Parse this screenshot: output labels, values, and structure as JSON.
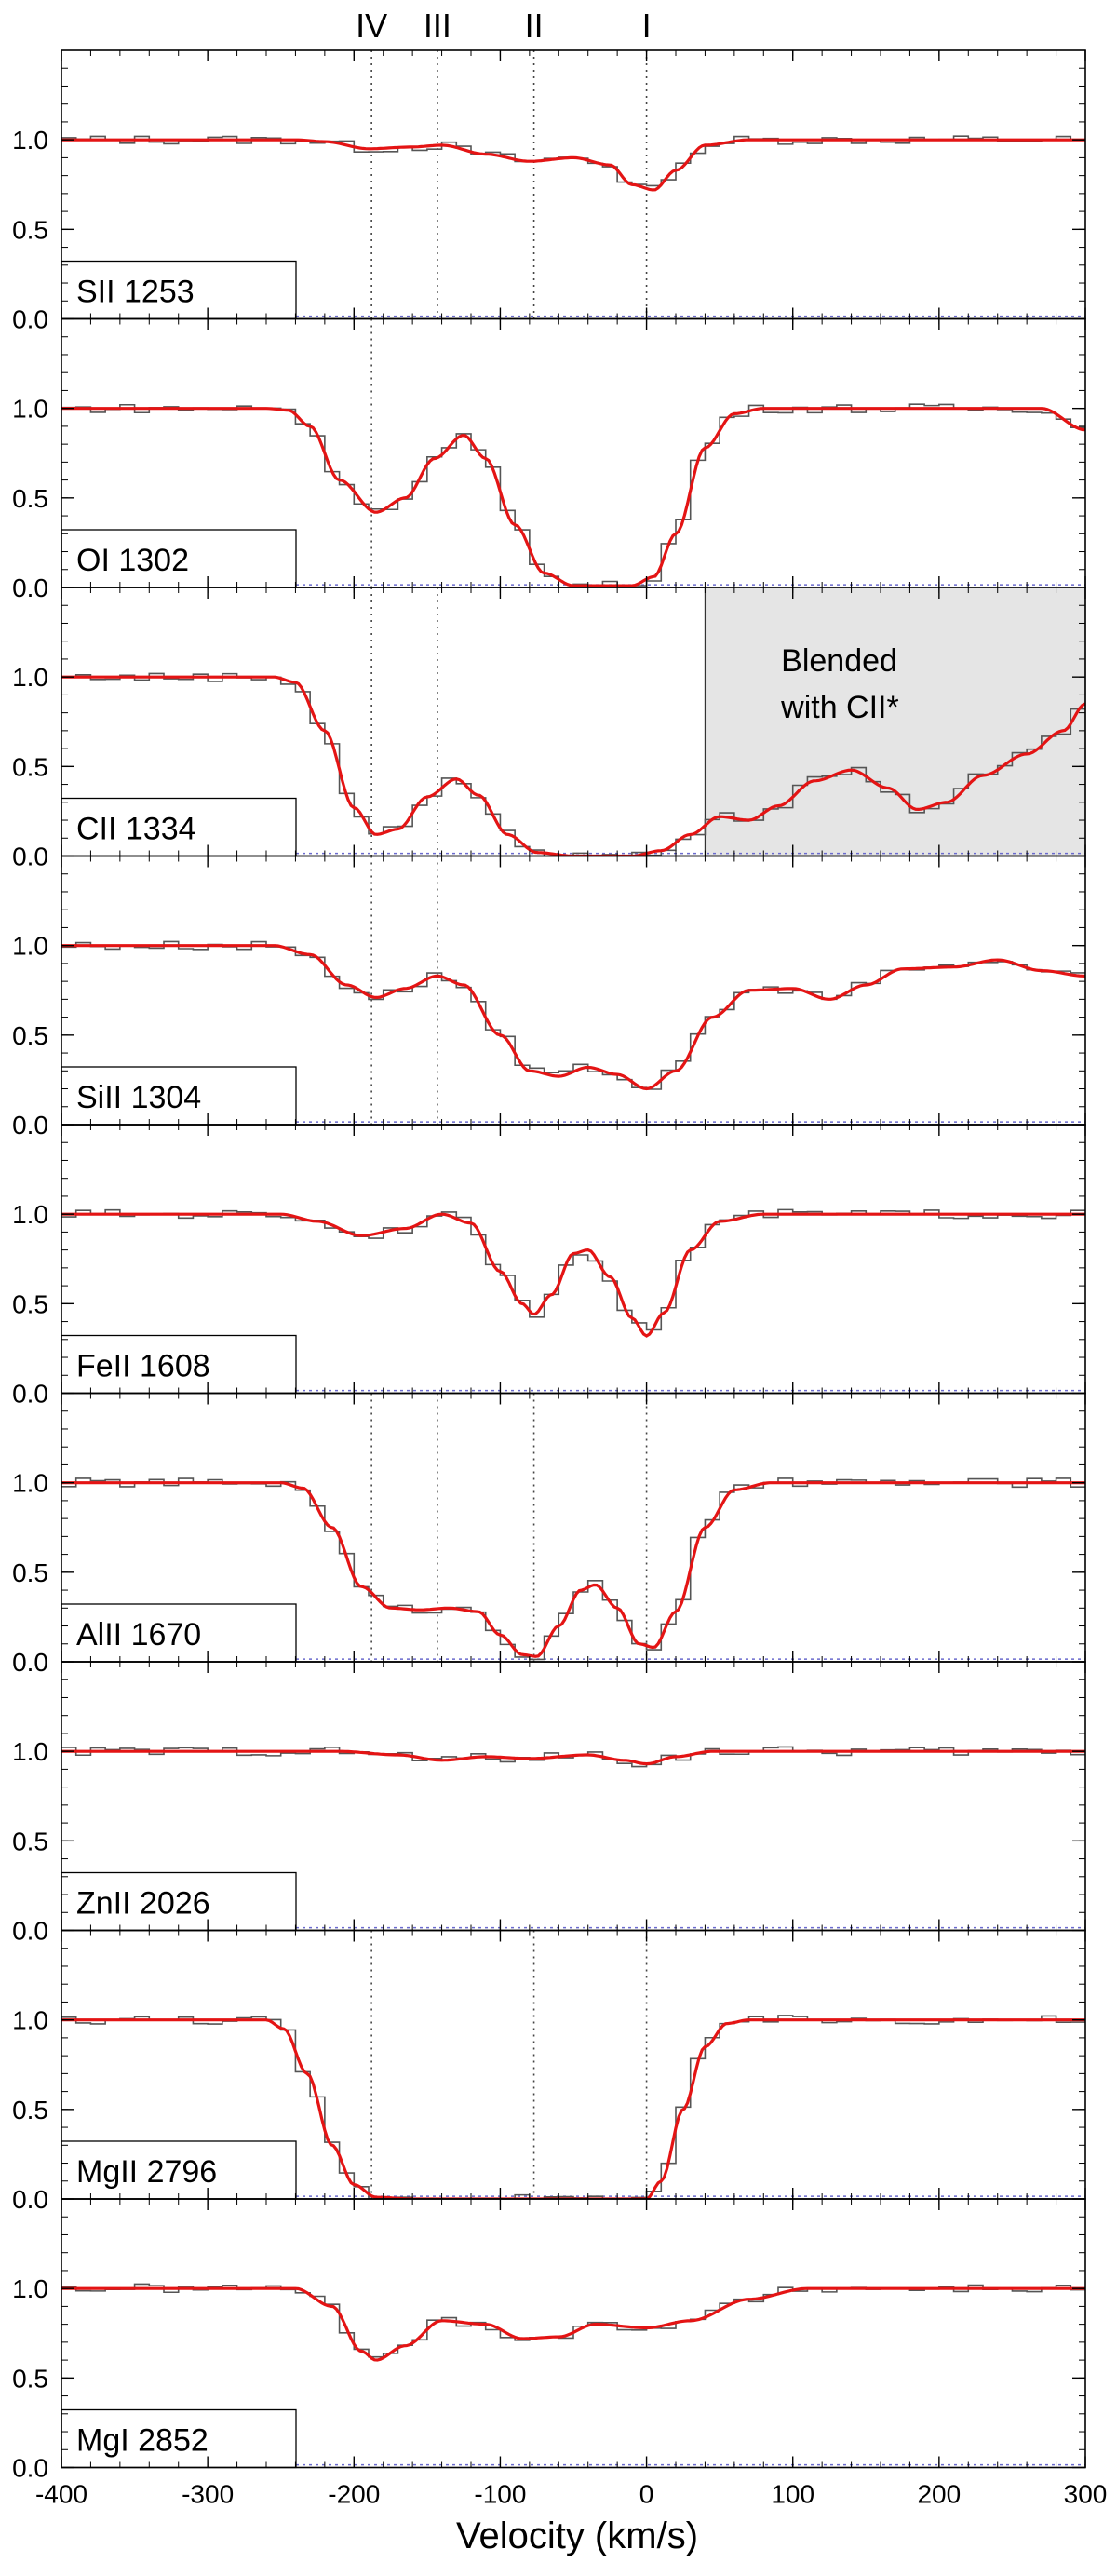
{
  "chart_data": {
    "type": "line",
    "xlabel": "Velocity (km/s)",
    "xlim": [
      -400,
      300
    ],
    "ylim": [
      0,
      1.5
    ],
    "x_ticks": [
      -400,
      -300,
      -200,
      -100,
      0,
      100,
      200,
      300
    ],
    "y_ticks": [
      0.0,
      0.5,
      1.0
    ],
    "y_tick_labels": [
      "0.0",
      "0.5",
      "1.0"
    ],
    "components": [
      {
        "label": "IV",
        "velocity": -188
      },
      {
        "label": "III",
        "velocity": -143
      },
      {
        "label": "II",
        "velocity": -77
      },
      {
        "label": "I",
        "velocity": 0
      }
    ],
    "panels": [
      {
        "label": "SII 1253",
        "component_lines": [
          "IV",
          "III",
          "II",
          "I"
        ],
        "fit_model": [
          {
            "v": -400,
            "f": 1.0
          },
          {
            "v": -240,
            "f": 1.0
          },
          {
            "v": -220,
            "f": 0.99
          },
          {
            "v": -190,
            "f": 0.95
          },
          {
            "v": -160,
            "f": 0.96
          },
          {
            "v": -140,
            "f": 0.97
          },
          {
            "v": -110,
            "f": 0.92
          },
          {
            "v": -80,
            "f": 0.88
          },
          {
            "v": -50,
            "f": 0.9
          },
          {
            "v": -25,
            "f": 0.86
          },
          {
            "v": -10,
            "f": 0.75
          },
          {
            "v": 5,
            "f": 0.72
          },
          {
            "v": 20,
            "f": 0.83
          },
          {
            "v": 40,
            "f": 0.97
          },
          {
            "v": 70,
            "f": 1.0
          },
          {
            "v": 300,
            "f": 1.0
          }
        ]
      },
      {
        "label": "OI 1302",
        "component_lines": [
          "IV"
        ],
        "fit_model": [
          {
            "v": -400,
            "f": 1.0
          },
          {
            "v": -260,
            "f": 1.0
          },
          {
            "v": -245,
            "f": 0.99
          },
          {
            "v": -230,
            "f": 0.9
          },
          {
            "v": -210,
            "f": 0.6
          },
          {
            "v": -185,
            "f": 0.42
          },
          {
            "v": -165,
            "f": 0.5
          },
          {
            "v": -145,
            "f": 0.72
          },
          {
            "v": -125,
            "f": 0.85
          },
          {
            "v": -110,
            "f": 0.72
          },
          {
            "v": -90,
            "f": 0.35
          },
          {
            "v": -70,
            "f": 0.08
          },
          {
            "v": -50,
            "f": 0.01
          },
          {
            "v": -10,
            "f": 0.01
          },
          {
            "v": 5,
            "f": 0.06
          },
          {
            "v": 20,
            "f": 0.3
          },
          {
            "v": 40,
            "f": 0.78
          },
          {
            "v": 60,
            "f": 0.97
          },
          {
            "v": 80,
            "f": 1.0
          },
          {
            "v": 270,
            "f": 1.0
          },
          {
            "v": 300,
            "f": 0.88
          }
        ]
      },
      {
        "label": "CII 1334",
        "component_lines": [
          "IV",
          "III"
        ],
        "annotation": "Blended with CII*",
        "annotation_lines": [
          "Blended",
          "with CII*"
        ],
        "blend_region": [
          40,
          300
        ],
        "fit_model": [
          {
            "v": -400,
            "f": 1.0
          },
          {
            "v": -255,
            "f": 1.0
          },
          {
            "v": -240,
            "f": 0.97
          },
          {
            "v": -220,
            "f": 0.7
          },
          {
            "v": -200,
            "f": 0.27
          },
          {
            "v": -185,
            "f": 0.12
          },
          {
            "v": -170,
            "f": 0.15
          },
          {
            "v": -150,
            "f": 0.33
          },
          {
            "v": -130,
            "f": 0.43
          },
          {
            "v": -115,
            "f": 0.34
          },
          {
            "v": -95,
            "f": 0.12
          },
          {
            "v": -75,
            "f": 0.02
          },
          {
            "v": -50,
            "f": 0.0
          },
          {
            "v": -10,
            "f": 0.0
          },
          {
            "v": 10,
            "f": 0.03
          },
          {
            "v": 30,
            "f": 0.12
          },
          {
            "v": 50,
            "f": 0.22
          },
          {
            "v": 70,
            "f": 0.2
          },
          {
            "v": 90,
            "f": 0.28
          },
          {
            "v": 115,
            "f": 0.42
          },
          {
            "v": 140,
            "f": 0.48
          },
          {
            "v": 165,
            "f": 0.38
          },
          {
            "v": 185,
            "f": 0.26
          },
          {
            "v": 205,
            "f": 0.3
          },
          {
            "v": 230,
            "f": 0.45
          },
          {
            "v": 260,
            "f": 0.57
          },
          {
            "v": 285,
            "f": 0.7
          },
          {
            "v": 300,
            "f": 0.85
          }
        ]
      },
      {
        "label": "SiII 1304",
        "component_lines": [
          "IV",
          "III"
        ],
        "fit_model": [
          {
            "v": -400,
            "f": 1.0
          },
          {
            "v": -255,
            "f": 1.0
          },
          {
            "v": -230,
            "f": 0.95
          },
          {
            "v": -205,
            "f": 0.78
          },
          {
            "v": -185,
            "f": 0.71
          },
          {
            "v": -165,
            "f": 0.76
          },
          {
            "v": -143,
            "f": 0.83
          },
          {
            "v": -125,
            "f": 0.78
          },
          {
            "v": -100,
            "f": 0.5
          },
          {
            "v": -80,
            "f": 0.3
          },
          {
            "v": -60,
            "f": 0.27
          },
          {
            "v": -40,
            "f": 0.32
          },
          {
            "v": -20,
            "f": 0.28
          },
          {
            "v": 0,
            "f": 0.2
          },
          {
            "v": 20,
            "f": 0.3
          },
          {
            "v": 45,
            "f": 0.6
          },
          {
            "v": 70,
            "f": 0.75
          },
          {
            "v": 100,
            "f": 0.76
          },
          {
            "v": 125,
            "f": 0.7
          },
          {
            "v": 150,
            "f": 0.78
          },
          {
            "v": 175,
            "f": 0.87
          },
          {
            "v": 210,
            "f": 0.88
          },
          {
            "v": 240,
            "f": 0.92
          },
          {
            "v": 270,
            "f": 0.86
          },
          {
            "v": 300,
            "f": 0.83
          }
        ]
      },
      {
        "label": "FeII 1608",
        "component_lines": [],
        "fit_model": [
          {
            "v": -400,
            "f": 1.0
          },
          {
            "v": -250,
            "f": 1.0
          },
          {
            "v": -225,
            "f": 0.96
          },
          {
            "v": -195,
            "f": 0.88
          },
          {
            "v": -165,
            "f": 0.92
          },
          {
            "v": -140,
            "f": 1.0
          },
          {
            "v": -120,
            "f": 0.95
          },
          {
            "v": -100,
            "f": 0.68
          },
          {
            "v": -85,
            "f": 0.5
          },
          {
            "v": -77,
            "f": 0.44
          },
          {
            "v": -65,
            "f": 0.55
          },
          {
            "v": -50,
            "f": 0.78
          },
          {
            "v": -40,
            "f": 0.8
          },
          {
            "v": -25,
            "f": 0.65
          },
          {
            "v": -10,
            "f": 0.42
          },
          {
            "v": 0,
            "f": 0.32
          },
          {
            "v": 12,
            "f": 0.45
          },
          {
            "v": 30,
            "f": 0.8
          },
          {
            "v": 50,
            "f": 0.96
          },
          {
            "v": 80,
            "f": 1.0
          },
          {
            "v": 300,
            "f": 1.0
          }
        ]
      },
      {
        "label": "AlII 1670",
        "component_lines": [
          "IV",
          "III",
          "II",
          "I"
        ],
        "fit_model": [
          {
            "v": -400,
            "f": 1.0
          },
          {
            "v": -250,
            "f": 1.0
          },
          {
            "v": -235,
            "f": 0.97
          },
          {
            "v": -215,
            "f": 0.75
          },
          {
            "v": -195,
            "f": 0.42
          },
          {
            "v": -175,
            "f": 0.3
          },
          {
            "v": -155,
            "f": 0.29
          },
          {
            "v": -135,
            "f": 0.3
          },
          {
            "v": -115,
            "f": 0.28
          },
          {
            "v": -100,
            "f": 0.15
          },
          {
            "v": -85,
            "f": 0.04
          },
          {
            "v": -75,
            "f": 0.03
          },
          {
            "v": -60,
            "f": 0.2
          },
          {
            "v": -45,
            "f": 0.4
          },
          {
            "v": -35,
            "f": 0.43
          },
          {
            "v": -20,
            "f": 0.3
          },
          {
            "v": -5,
            "f": 0.1
          },
          {
            "v": 5,
            "f": 0.08
          },
          {
            "v": 20,
            "f": 0.28
          },
          {
            "v": 40,
            "f": 0.75
          },
          {
            "v": 60,
            "f": 0.96
          },
          {
            "v": 85,
            "f": 1.0
          },
          {
            "v": 300,
            "f": 1.0
          }
        ]
      },
      {
        "label": "ZnII 2026",
        "component_lines": [],
        "fit_model": [
          {
            "v": -400,
            "f": 1.0
          },
          {
            "v": -210,
            "f": 1.0
          },
          {
            "v": -170,
            "f": 0.98
          },
          {
            "v": -140,
            "f": 0.95
          },
          {
            "v": -110,
            "f": 0.97
          },
          {
            "v": -80,
            "f": 0.96
          },
          {
            "v": -40,
            "f": 0.98
          },
          {
            "v": -15,
            "f": 0.95
          },
          {
            "v": 0,
            "f": 0.93
          },
          {
            "v": 20,
            "f": 0.97
          },
          {
            "v": 45,
            "f": 1.0
          },
          {
            "v": 300,
            "f": 1.0
          }
        ]
      },
      {
        "label": "MgII 2796",
        "component_lines": [
          "IV",
          "II",
          "I"
        ],
        "fit_model": [
          {
            "v": -400,
            "f": 1.0
          },
          {
            "v": -260,
            "f": 1.0
          },
          {
            "v": -248,
            "f": 0.95
          },
          {
            "v": -232,
            "f": 0.7
          },
          {
            "v": -215,
            "f": 0.3
          },
          {
            "v": -200,
            "f": 0.08
          },
          {
            "v": -185,
            "f": 0.01
          },
          {
            "v": -160,
            "f": 0.0
          },
          {
            "v": 0,
            "f": 0.0
          },
          {
            "v": 10,
            "f": 0.1
          },
          {
            "v": 25,
            "f": 0.5
          },
          {
            "v": 40,
            "f": 0.85
          },
          {
            "v": 55,
            "f": 0.98
          },
          {
            "v": 70,
            "f": 1.0
          },
          {
            "v": 300,
            "f": 1.0
          }
        ]
      },
      {
        "label": "MgI 2852",
        "component_lines": [],
        "fit_model": [
          {
            "v": -400,
            "f": 1.0
          },
          {
            "v": -240,
            "f": 1.0
          },
          {
            "v": -215,
            "f": 0.9
          },
          {
            "v": -195,
            "f": 0.65
          },
          {
            "v": -185,
            "f": 0.6
          },
          {
            "v": -165,
            "f": 0.68
          },
          {
            "v": -140,
            "f": 0.82
          },
          {
            "v": -110,
            "f": 0.8
          },
          {
            "v": -85,
            "f": 0.72
          },
          {
            "v": -60,
            "f": 0.73
          },
          {
            "v": -35,
            "f": 0.8
          },
          {
            "v": 0,
            "f": 0.78
          },
          {
            "v": 30,
            "f": 0.82
          },
          {
            "v": 70,
            "f": 0.94
          },
          {
            "v": 110,
            "f": 1.0
          },
          {
            "v": 300,
            "f": 1.0
          }
        ]
      }
    ]
  },
  "colors": {
    "fit": "#e41414",
    "data": "#555555",
    "error": "#6a6acd",
    "axes": "#000000",
    "component_line": "#444444",
    "blend_region": "#e5e5e5"
  }
}
